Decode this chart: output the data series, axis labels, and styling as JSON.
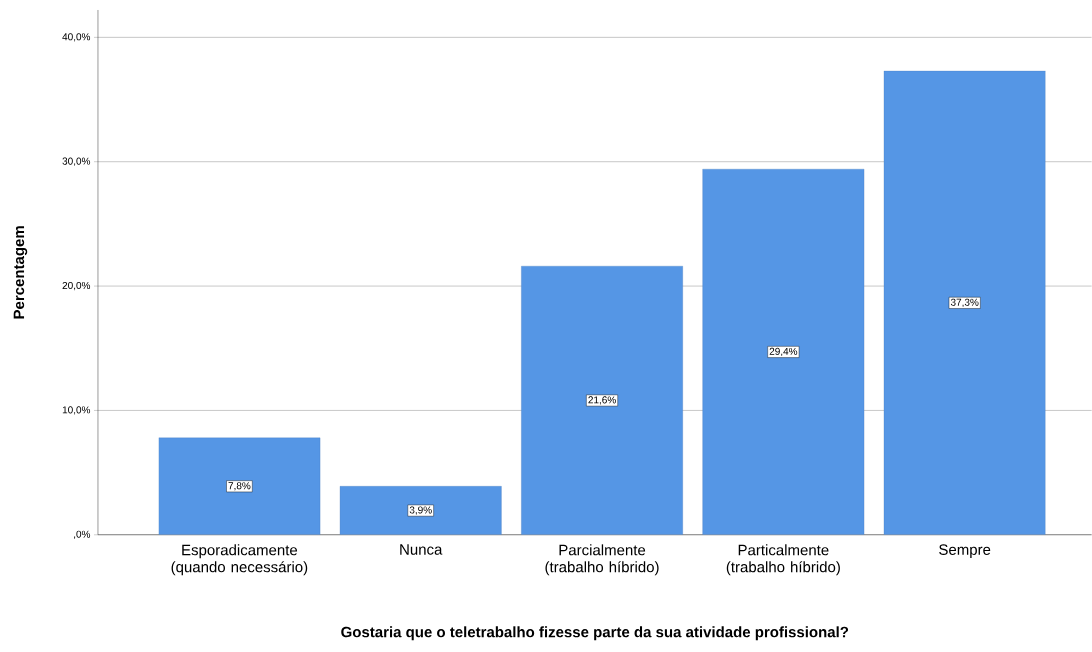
{
  "chart_data": {
    "type": "bar",
    "xlabel": "Gostaria que o teletrabalho fizesse parte da sua atividade profissional?",
    "ylabel": "Percentagem",
    "categories": [
      "Esporadicamente (quando necessário)",
      "Nunca",
      "Parcialmente (trabalho híbrido)",
      "Particalmente (trabalho híbrido)",
      "Sempre"
    ],
    "values": [
      7.8,
      3.9,
      21.6,
      29.4,
      37.3
    ],
    "value_labels": [
      "7,8%",
      "3,9%",
      "21,6%",
      "29,4%",
      "37,3%"
    ],
    "color": "#5596e5",
    "ylim": [
      0,
      42.2
    ],
    "yticks": [
      {
        "value": 0,
        "label": ",0%"
      },
      {
        "value": 10,
        "label": "10,0%"
      },
      {
        "value": 20,
        "label": "20,0%"
      },
      {
        "value": 30,
        "label": "30,0%"
      },
      {
        "value": 40,
        "label": "40,0%"
      }
    ],
    "grid": "y"
  }
}
